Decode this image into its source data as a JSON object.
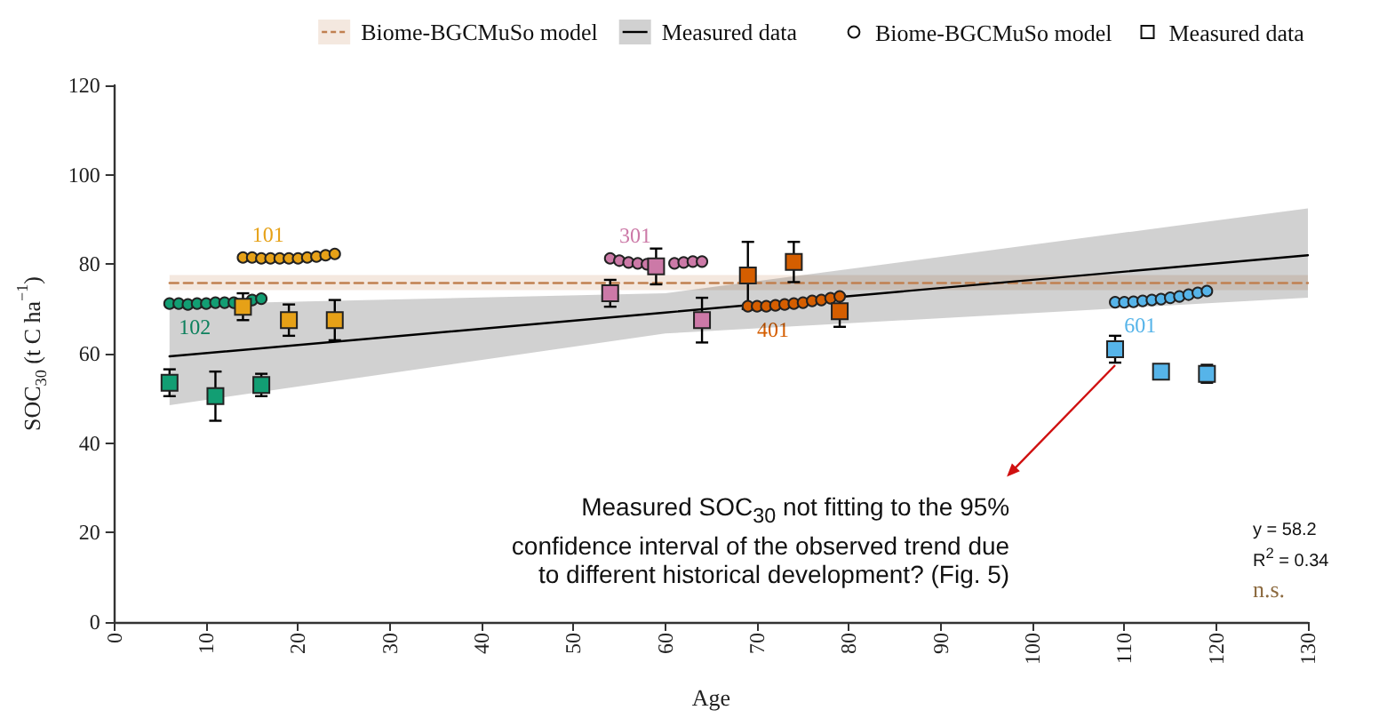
{
  "chart_data": {
    "type": "scatter",
    "xlabel": "Age",
    "ylabel": "SOC$_{30}$ (t C ha$^{−1}$)",
    "xlim": [
      0,
      130
    ],
    "xticks": [
      0,
      10,
      20,
      30,
      40,
      50,
      60,
      70,
      80,
      90,
      100,
      110,
      120,
      130
    ],
    "ylim": [
      0,
      120
    ],
    "yticks": [
      0,
      20,
      40,
      60,
      80,
      100,
      120
    ],
    "grid": false,
    "legend": "top",
    "series": [
      {
        "type": "line",
        "name": "Biome-BGCMuSo model",
        "color": "#c08050",
        "line_style": "dashed",
        "marker": "none",
        "x": [
          6,
          130
        ],
        "values": [
          75.8,
          75.8
        ],
        "lower": [
          74.2,
          74.2
        ],
        "upper": [
          77.6,
          77.6
        ]
      },
      {
        "type": "line",
        "name": "Measured data",
        "color": "#000000",
        "line_style": "solid",
        "marker": "none",
        "x": [
          6,
          60,
          130
        ],
        "values": [
          59.4,
          69.2,
          82
        ],
        "lower": [
          48.5,
          64.5,
          72.5
        ],
        "upper": [
          71,
          73.5,
          92.5
        ]
      },
      {
        "name": "101",
        "color": "#e6a117",
        "marker": "circle",
        "x": [
          14,
          15,
          16,
          17,
          18,
          19,
          20,
          21,
          22,
          23,
          24
        ],
        "values": [
          81.5,
          81.5,
          81.3,
          81.3,
          81.3,
          81.3,
          81.3,
          81.5,
          81.7,
          82,
          82.3
        ]
      },
      {
        "name": "102",
        "color": "#129e73",
        "marker": "circle",
        "x": [
          6,
          7,
          8,
          9,
          10,
          11,
          12,
          13,
          14,
          15,
          16
        ],
        "values": [
          71.2,
          71.2,
          71,
          71.2,
          71.2,
          71.4,
          71.4,
          71.4,
          null,
          72,
          72.3
        ]
      },
      {
        "name": "301",
        "color": "#cc79a7",
        "marker": "circle",
        "x": [
          54,
          55,
          56,
          57,
          58,
          59,
          60,
          61,
          62,
          63,
          64
        ],
        "values": [
          81.3,
          80.8,
          80.4,
          80.2,
          80,
          null,
          null,
          80.2,
          80.4,
          80.6,
          80.6
        ]
      },
      {
        "name": "401",
        "color": "#d55e00",
        "marker": "circle",
        "x": [
          69,
          70,
          71,
          72,
          73,
          74,
          75,
          76,
          77,
          78,
          79
        ],
        "values": [
          70.6,
          70.6,
          70.6,
          70.8,
          71,
          71.2,
          71.4,
          71.8,
          72,
          72.4,
          72.8
        ]
      },
      {
        "name": "601",
        "color": "#56b4e9",
        "marker": "circle",
        "x": [
          109,
          110,
          111,
          112,
          113,
          114,
          115,
          116,
          117,
          118,
          119
        ],
        "values": [
          71.5,
          71.5,
          71.6,
          71.8,
          72,
          72.2,
          72.5,
          72.8,
          73.2,
          73.6,
          74
        ]
      },
      {
        "color": "#129e73",
        "marker": "square",
        "x": [
          6,
          11,
          16
        ],
        "values": [
          53.5,
          50.5,
          53
        ],
        "errors": [
          3,
          5.5,
          2.5
        ]
      },
      {
        "color": "#e6a117",
        "marker": "square",
        "x": [
          14,
          19,
          24
        ],
        "values": [
          70.5,
          67.5,
          67.5
        ],
        "errors": [
          3,
          3.5,
          4.5
        ]
      },
      {
        "color": "#cc79a7",
        "marker": "square",
        "x": [
          54,
          59,
          64
        ],
        "values": [
          73.5,
          79.5,
          67.5
        ],
        "errors": [
          3,
          4,
          5
        ]
      },
      {
        "color": "#d55e00",
        "marker": "square",
        "x": [
          69,
          74,
          79
        ],
        "values": [
          77.5,
          80.5,
          69.5
        ],
        "errors": [
          7.5,
          4.5,
          3.5
        ]
      },
      {
        "color": "#56b4e9",
        "marker": "square",
        "x": [
          109,
          114,
          119
        ],
        "values": [
          61,
          56,
          55.5
        ],
        "errors": [
          3,
          1,
          2
        ]
      }
    ],
    "annotations": [
      {
        "text": "Measured SOC$_{30}$ not fitting to the 95% confidence interval of the observed trend due to different historical development? (Fig. 5)",
        "x": 109,
        "y": 61
      },
      "y = 58.2",
      "R$^{2}$ = 0.34",
      "n.s.",
      "Biome-BGCMuSo model",
      "Measured data"
    ]
  }
}
